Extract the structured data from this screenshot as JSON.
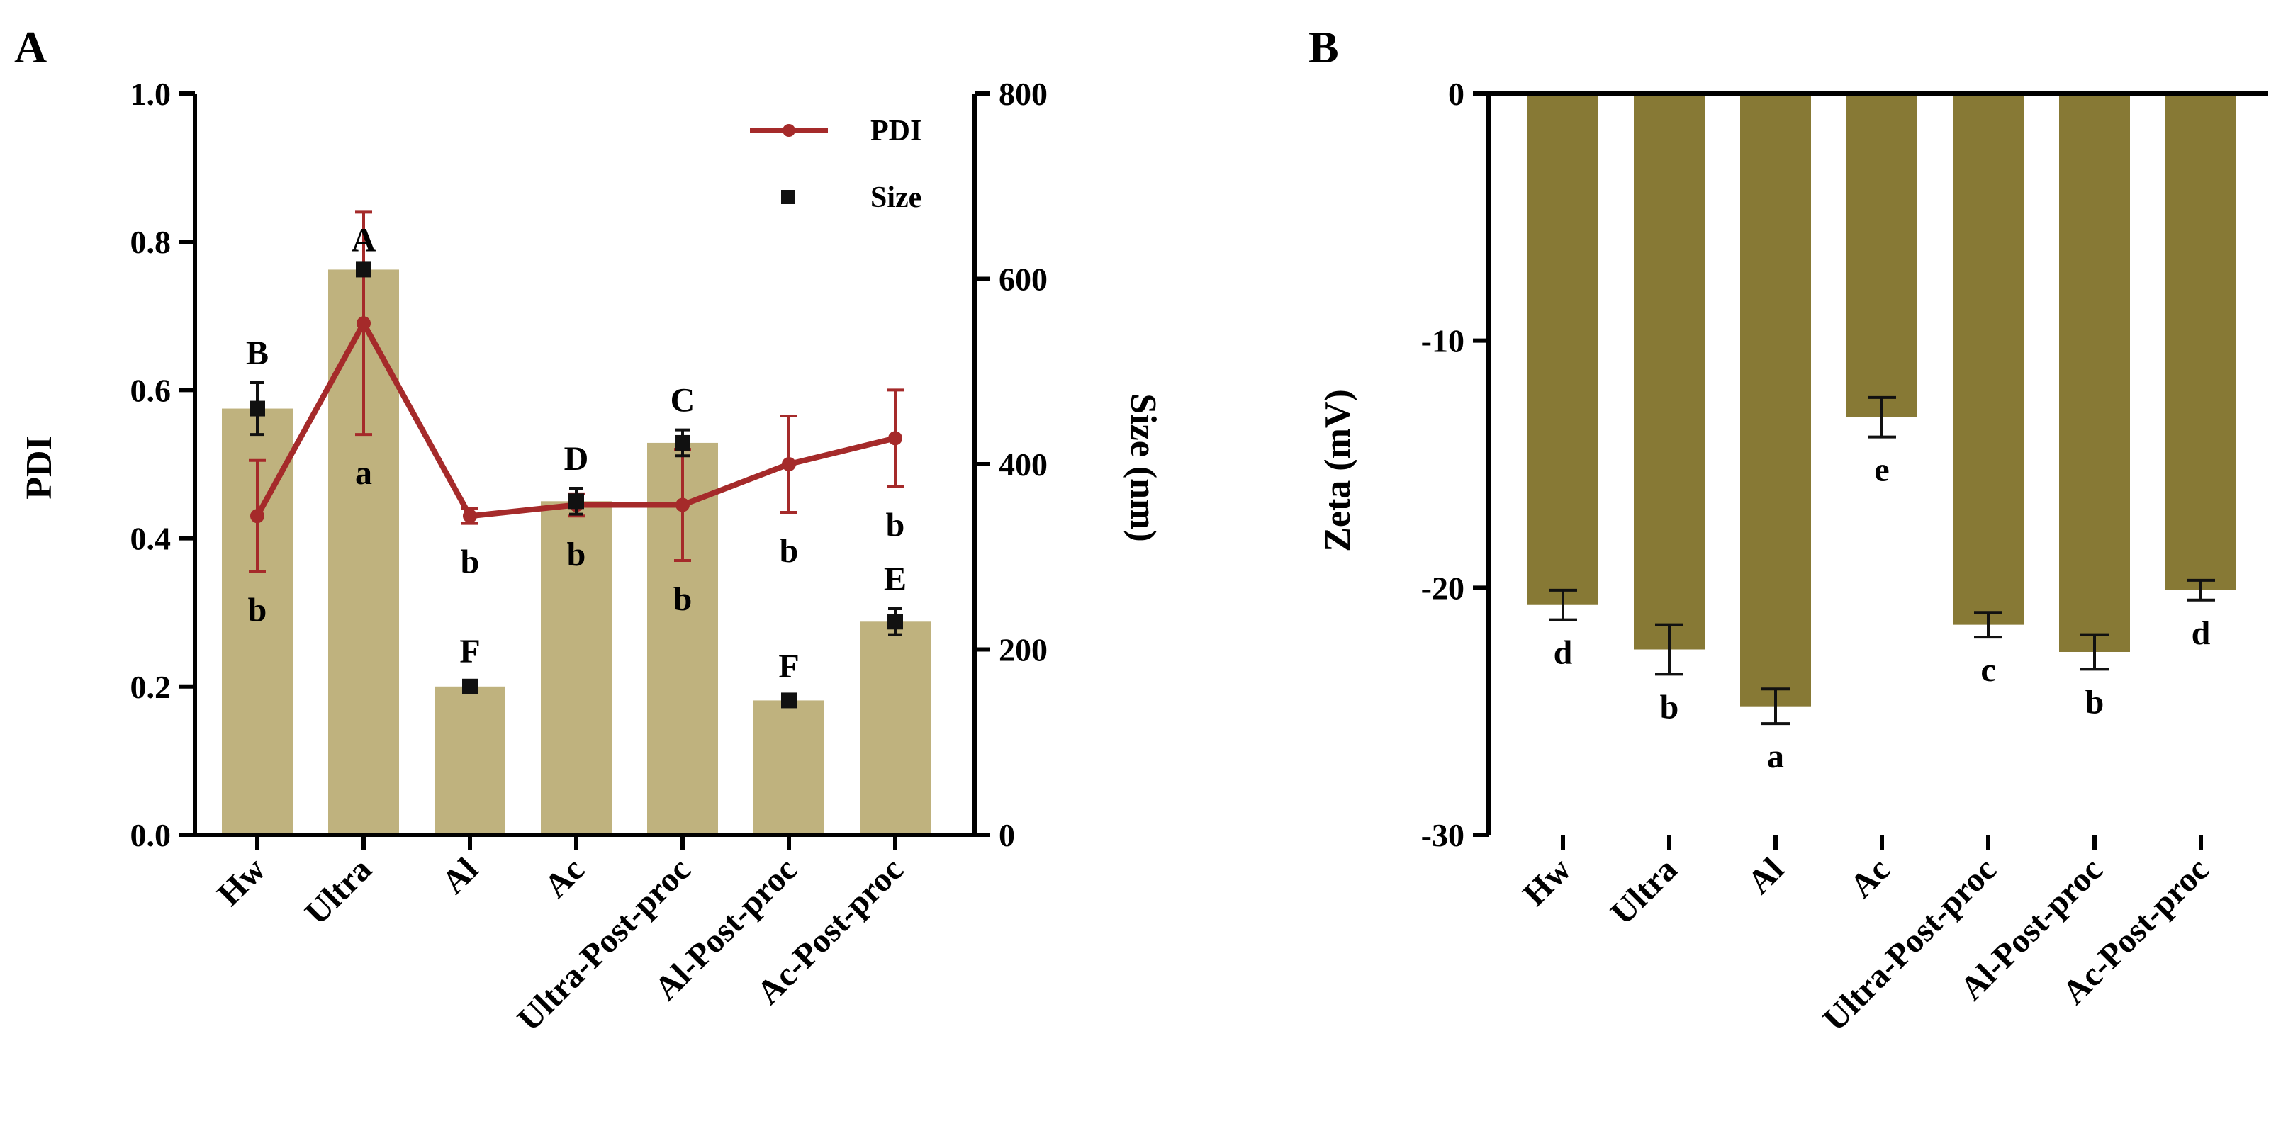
{
  "colors": {
    "bar_a": "#bfb27e",
    "bar_b": "#877935",
    "pdi_line": "#a52a2a",
    "size_marker": "#111111",
    "axis": "#000000"
  },
  "chart_data": [
    {
      "panel": "A",
      "type": "bar",
      "categories": [
        "Hw",
        "Ultra",
        "Al",
        "Ac",
        "Ultra-Post-proc",
        "Al-Post-proc",
        "Ac-Post-proc"
      ],
      "ylabel": "PDI",
      "y2label": "Size (nm)",
      "ylim": [
        0,
        1.0
      ],
      "y2lim": [
        0,
        800
      ],
      "yticks": [
        "0.0",
        "0.2",
        "0.4",
        "0.6",
        "0.8",
        "1.0"
      ],
      "y2ticks": [
        "0",
        "200",
        "400",
        "600",
        "800"
      ],
      "legend": {
        "position": "top-right",
        "entries": [
          "PDI",
          "Size"
        ]
      },
      "series": [
        {
          "name": "Size",
          "kind": "bar+marker",
          "axis": "right",
          "values": [
            460,
            610,
            160,
            360,
            423,
            145,
            230
          ],
          "errors": [
            28,
            0,
            6,
            14,
            14,
            5,
            14
          ],
          "letters": [
            "B",
            "A",
            "F",
            "D",
            "C",
            "F",
            "E"
          ]
        },
        {
          "name": "PDI",
          "kind": "line",
          "axis": "left",
          "values": [
            0.43,
            0.69,
            0.43,
            0.445,
            0.445,
            0.5,
            0.535
          ],
          "errors": [
            0.075,
            0.15,
            0.01,
            0.015,
            0.075,
            0.065,
            0.065
          ],
          "letters": [
            "b",
            "a",
            "b",
            "b",
            "b",
            "b",
            "b"
          ]
        }
      ]
    },
    {
      "panel": "B",
      "type": "bar",
      "categories": [
        "Hw",
        "Ultra",
        "Al",
        "Ac",
        "Ultra-Post-proc",
        "Al-Post-proc",
        "Ac-Post-proc"
      ],
      "ylabel": "Zeta (mV)",
      "ylim": [
        -30,
        0
      ],
      "yticks": [
        "0",
        "-10",
        "-20",
        "-30"
      ],
      "series": [
        {
          "name": "Zeta",
          "values": [
            -20.7,
            -22.5,
            -24.8,
            -13.1,
            -21.5,
            -22.6,
            -20.1
          ],
          "errors": [
            0.6,
            1.0,
            0.7,
            0.8,
            0.5,
            0.7,
            0.4
          ],
          "letters": [
            "d",
            "b",
            "a",
            "e",
            "c",
            "b",
            "d"
          ]
        }
      ]
    }
  ]
}
